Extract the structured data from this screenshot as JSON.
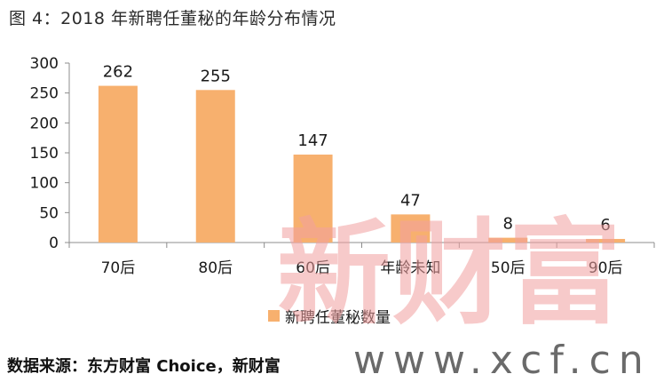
{
  "figure": {
    "title": "图 4：2018 年新聘任董秘的年龄分布情况",
    "source": "数据来源：东方财富 Choice，新财富"
  },
  "watermark": {
    "brand": "新财富",
    "url": "www.xcf.cn"
  },
  "colors": {
    "bar": "#F7B06E",
    "axis": "#8c8c8c",
    "text": "#1a1a1a",
    "watermark": "#f2a0a0"
  },
  "chart_data": {
    "type": "bar",
    "title": "",
    "xlabel": "",
    "ylabel": "",
    "categories": [
      "70后",
      "80后",
      "60后",
      "年龄未知",
      "50后",
      "90后"
    ],
    "series": [
      {
        "name": "新聘任董秘数量",
        "values": [
          262,
          255,
          147,
          47,
          8,
          6
        ]
      }
    ],
    "ylim": [
      0,
      300
    ],
    "yticks": [
      0,
      50,
      100,
      150,
      200,
      250,
      300
    ],
    "data_labels": true,
    "grid": false,
    "legend": "bottom"
  }
}
